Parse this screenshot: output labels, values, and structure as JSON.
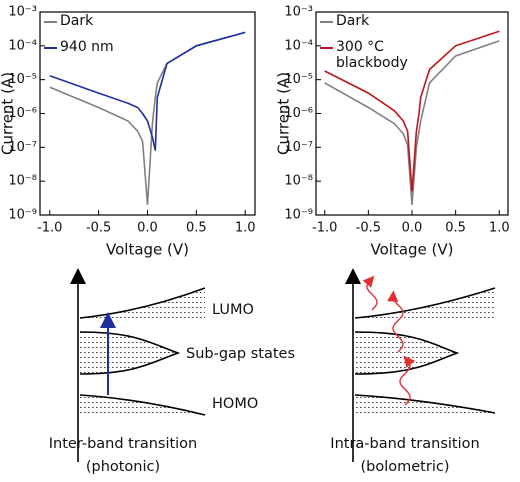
{
  "chart_data": [
    {
      "type": "line",
      "log_y": true,
      "ylabel": "Current (A)",
      "xlabel": "Voltage (V)",
      "x": [
        -1,
        -0.5,
        -0.2,
        -0.1,
        -0.05,
        0,
        0.05,
        0.08,
        0.1,
        0.2,
        0.5,
        1
      ],
      "series": [
        {
          "name": "Dark",
          "color": "#808080",
          "values": [
            6e-06,
            1.5e-06,
            6e-07,
            3e-07,
            1.5e-07,
            2e-09,
            5e-07,
            3e-06,
            8e-06,
            3e-05,
            0.0001,
            0.00025
          ]
        },
        {
          "name": "940 nm",
          "color": "#1f2f9e",
          "values": [
            1.3e-05,
            4e-06,
            2e-06,
            1.5e-06,
            1e-06,
            6e-07,
            2e-07,
            8e-08,
            3e-06,
            3e-05,
            0.0001,
            0.00025
          ]
        }
      ],
      "xlim": [
        -1.1,
        1.1
      ],
      "ylim": [
        1e-09,
        0.001
      ],
      "xticks": [
        {
          "value": -1,
          "label": "-1.0"
        },
        -0.5,
        {
          "value": 0,
          "label": "0.0"
        },
        0.5,
        {
          "value": 1,
          "label": "1.0"
        }
      ],
      "yticks": [
        {
          "value": 1e-09,
          "label": "10⁻⁹"
        },
        {
          "value": 1e-08,
          "label": "10⁻⁸"
        },
        {
          "value": 1e-07,
          "label": "10⁻⁷"
        },
        {
          "value": 1e-06,
          "label": "10⁻⁶"
        },
        {
          "value": 1e-05,
          "label": "10⁻⁵"
        },
        {
          "value": 0.0001,
          "label": "10⁻⁴"
        },
        {
          "value": 0.001,
          "label": "10⁻³"
        }
      ]
    },
    {
      "type": "line",
      "log_y": true,
      "ylabel": "Current (A)",
      "xlabel": "Voltage (V)",
      "x": [
        -1,
        -0.5,
        -0.2,
        -0.1,
        -0.05,
        0,
        0.05,
        0.08,
        0.1,
        0.2,
        0.5,
        1
      ],
      "series": [
        {
          "name": "Dark",
          "color": "#808080",
          "values": [
            8e-06,
            1.5e-06,
            5e-07,
            2.5e-07,
            1.2e-07,
            2e-09,
            1e-07,
            3e-07,
            6e-07,
            8e-06,
            5e-05,
            0.00014
          ]
        },
        {
          "name": "300 °C blackbody",
          "color": "#c0141c",
          "values": [
            1.8e-05,
            4e-06,
            1.2e-06,
            6e-07,
            3e-07,
            5e-09,
            3e-07,
            1e-06,
            3e-06,
            2e-05,
            0.0001,
            0.00027
          ]
        }
      ],
      "xlim": [
        -1.1,
        1.1
      ],
      "ylim": [
        1e-09,
        0.001
      ],
      "xticks": [
        {
          "value": -1,
          "label": "-1.0"
        },
        -0.5,
        {
          "value": 0,
          "label": "0.0"
        },
        0.5,
        {
          "value": 1,
          "label": "1.0"
        }
      ],
      "yticks": [
        {
          "value": 1e-09,
          "label": "10⁻⁹"
        },
        {
          "value": 1e-08,
          "label": "10⁻⁸"
        },
        {
          "value": 1e-07,
          "label": "10⁻⁷"
        },
        {
          "value": 1e-06,
          "label": "10⁻⁶"
        },
        {
          "value": 1e-05,
          "label": "10⁻⁵"
        },
        {
          "value": 0.0001,
          "label": "10⁻⁴"
        },
        {
          "value": 0.001,
          "label": "10⁻³"
        }
      ]
    }
  ],
  "diagrams": [
    {
      "labels": [
        "LUMO",
        "Sub-gap states",
        "HOMO"
      ],
      "caption": [
        "Inter-band transition",
        "(photonic)"
      ]
    },
    {
      "caption": [
        "Intra-band transition",
        "(bolometric)"
      ]
    }
  ]
}
